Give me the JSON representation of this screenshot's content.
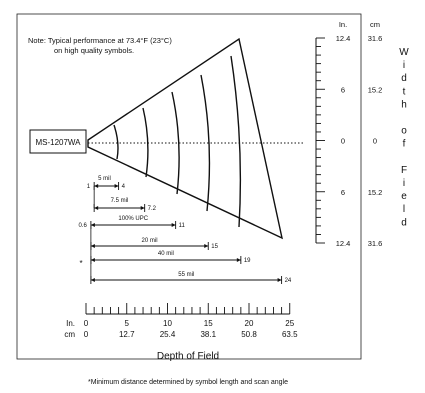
{
  "note": {
    "line1": "Note:  Typical performance at 73.4°F (23°C)",
    "line2": "on high quality symbols."
  },
  "scanner_label": "MS-1207WA",
  "width_axis": {
    "header_in": "In.",
    "header_cm": "cm",
    "rows": [
      {
        "in": "12.4",
        "cm": "31.6"
      },
      {
        "in": "6",
        "cm": "15.2"
      },
      {
        "in": "0",
        "cm": "0"
      },
      {
        "in": "6",
        "cm": "15.2"
      },
      {
        "in": "12.4",
        "cm": "31.6"
      }
    ],
    "title_letters": [
      "W",
      "i",
      "d",
      "t",
      "h",
      "",
      "o",
      "f",
      "",
      "F",
      "i",
      "e",
      "l",
      "d"
    ]
  },
  "bars": [
    {
      "label": "5 mil",
      "start": 1,
      "end": 4,
      "start_label": "1",
      "end_label": "4"
    },
    {
      "label": "7.5 mil",
      "start": 1,
      "end": 7.2,
      "start_label": "",
      "end_label": "7.2"
    },
    {
      "label": "100% UPC",
      "start": 0.6,
      "end": 11,
      "start_label": "0.6",
      "end_label": "11"
    },
    {
      "label": "20 mil",
      "start": 0.6,
      "end": 15,
      "start_label": "",
      "end_label": "15"
    },
    {
      "label": "40 mil",
      "start": 0.6,
      "end": 19,
      "start_label": "",
      "end_label": "19"
    },
    {
      "label": "55 mil",
      "start": 0.6,
      "end": 24,
      "start_label": "",
      "end_label": "24"
    }
  ],
  "asterisk": "*",
  "depth_axis": {
    "unit_in": "In.",
    "unit_cm": "cm",
    "ticks_in": [
      "0",
      "5",
      "10",
      "15",
      "20",
      "25"
    ],
    "ticks_cm": [
      "0",
      "12.7",
      "25.4",
      "38.1",
      "50.8",
      "63.5"
    ],
    "title": "Depth of Field"
  },
  "footnote": "*Minimum distance determined by symbol length and scan angle"
}
